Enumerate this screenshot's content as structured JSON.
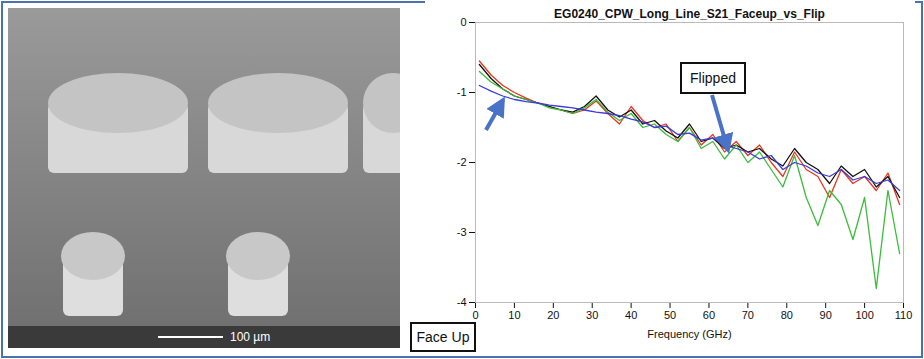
{
  "chart_data": {
    "type": "line",
    "title": "EG0240_CPW_Long_Line_S21_Faceup_vs_Flip",
    "x_label": "Frequency (GHz)",
    "x": [
      1,
      4,
      7,
      10,
      13,
      16,
      19,
      22,
      25,
      28,
      31,
      34,
      37,
      40,
      43,
      46,
      49,
      52,
      55,
      58,
      61,
      64,
      67,
      70,
      73,
      76,
      79,
      82,
      85,
      88,
      91,
      94,
      97,
      100,
      103,
      106,
      109
    ],
    "series": [
      {
        "color": "#e8351e",
        "values": [
          -0.55,
          -0.75,
          -0.9,
          -1.0,
          -1.08,
          -1.15,
          -1.2,
          -1.25,
          -1.3,
          -1.25,
          -1.12,
          -1.3,
          -1.45,
          -1.2,
          -1.4,
          -1.5,
          -1.45,
          -1.7,
          -1.5,
          -1.75,
          -1.6,
          -1.85,
          -1.7,
          -1.9,
          -1.75,
          -2.0,
          -2.2,
          -1.85,
          -2.1,
          -2.2,
          -2.5,
          -2.1,
          -2.3,
          -2.2,
          -2.4,
          -2.15,
          -2.6
        ]
      },
      {
        "color": "#111111",
        "values": [
          -0.6,
          -0.8,
          -0.95,
          -1.05,
          -1.1,
          -1.15,
          -1.2,
          -1.25,
          -1.28,
          -1.2,
          -1.05,
          -1.25,
          -1.35,
          -1.25,
          -1.45,
          -1.4,
          -1.55,
          -1.65,
          -1.45,
          -1.7,
          -1.65,
          -1.8,
          -1.75,
          -1.85,
          -1.8,
          -1.95,
          -2.05,
          -1.8,
          -2.0,
          -2.1,
          -2.3,
          -2.05,
          -2.2,
          -2.1,
          -2.35,
          -2.2,
          -2.5
        ]
      },
      {
        "color": "#3cbb3c",
        "values": [
          -0.7,
          -0.85,
          -0.95,
          -1.05,
          -1.1,
          -1.15,
          -1.22,
          -1.25,
          -1.3,
          -1.22,
          -1.1,
          -1.28,
          -1.4,
          -1.3,
          -1.5,
          -1.45,
          -1.6,
          -1.7,
          -1.5,
          -1.8,
          -1.7,
          -1.95,
          -1.75,
          -2.0,
          -1.85,
          -2.1,
          -2.35,
          -1.9,
          -2.5,
          -2.9,
          -2.4,
          -2.6,
          -3.1,
          -2.5,
          -3.8,
          -2.4,
          -3.3
        ]
      },
      {
        "color": "#3c3cd8",
        "values": [
          -0.9,
          -0.98,
          -1.05,
          -1.1,
          -1.13,
          -1.15,
          -1.18,
          -1.2,
          -1.22,
          -1.25,
          -1.28,
          -1.3,
          -1.33,
          -1.38,
          -1.42,
          -1.5,
          -1.48,
          -1.6,
          -1.58,
          -1.68,
          -1.65,
          -1.75,
          -1.8,
          -1.85,
          -1.95,
          -1.9,
          -2.1,
          -2.0,
          -2.05,
          -2.15,
          -2.2,
          -2.1,
          -2.25,
          -2.2,
          -2.3,
          -2.25,
          -2.4
        ]
      }
    ],
    "xlim": [
      0,
      110
    ],
    "xticks": [
      0,
      10,
      20,
      30,
      40,
      50,
      60,
      70,
      80,
      90,
      100,
      110
    ],
    "ylim": [
      -4,
      0
    ],
    "yticks": [
      -4,
      -3,
      -2,
      -1,
      0
    ],
    "grid": false,
    "annotations": [
      "Flipped",
      "Face Up"
    ]
  },
  "image": {
    "scale_bar": "100 µm"
  }
}
